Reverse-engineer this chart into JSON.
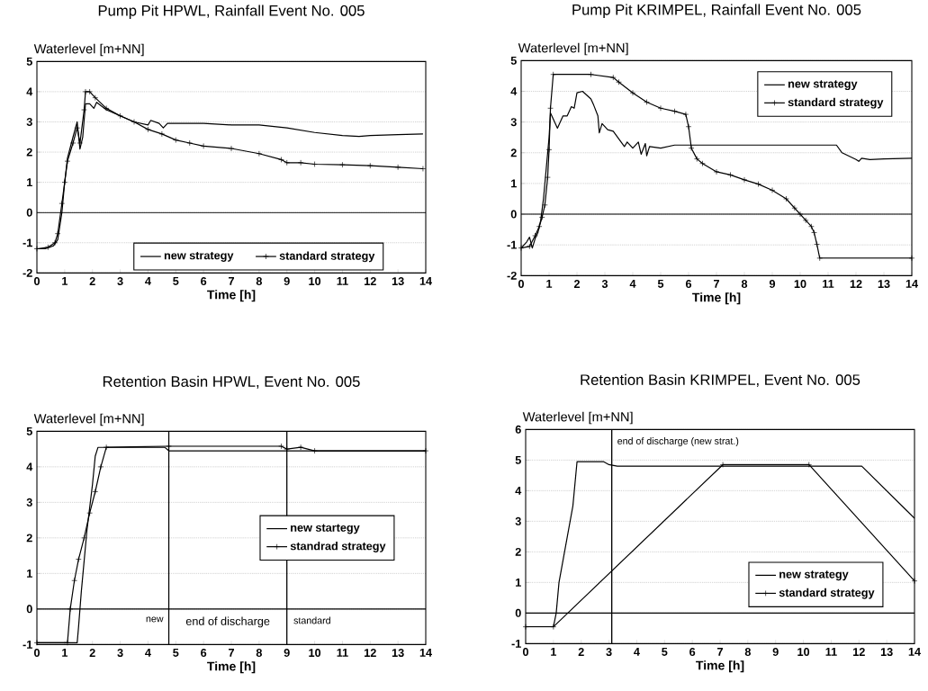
{
  "chart_data": [
    {
      "type": "line",
      "title": "Pump Pit HPWL, Rainfall Event No. 005",
      "ylabel": "Waterlevel [m+NN]",
      "xlabel": "Time [h]",
      "xlim": [
        0,
        14
      ],
      "ylim": [
        -2,
        5
      ],
      "xticks": [
        0,
        1,
        2,
        3,
        4,
        5,
        6,
        7,
        8,
        9,
        10,
        11,
        12,
        13,
        14
      ],
      "yticks": [
        -2,
        -1,
        0,
        1,
        2,
        3,
        4,
        5
      ],
      "grid": "y",
      "legend": "bottom",
      "ref_lines": [
        {
          "axis": "y",
          "value": 0,
          "color": "#000000"
        }
      ],
      "series": [
        {
          "name": "new strategy",
          "color": "#000000",
          "marker": "none",
          "x": [
            0,
            0.3,
            0.6,
            0.75,
            0.9,
            1.0,
            1.1,
            1.3,
            1.45,
            1.55,
            1.65,
            1.75,
            1.9,
            2.05,
            2.15,
            2.5,
            3,
            3.5,
            4,
            4.1,
            4.4,
            4.55,
            4.7,
            5,
            6,
            7,
            8,
            9,
            10,
            11,
            11.6,
            12,
            13,
            13.9
          ],
          "values": [
            -1.2,
            -1.2,
            -1.1,
            -0.9,
            0,
            1.0,
            1.8,
            2.5,
            3.0,
            2.1,
            2.5,
            3.6,
            3.6,
            3.45,
            3.65,
            3.4,
            3.2,
            3.0,
            2.9,
            3.05,
            2.95,
            2.8,
            2.95,
            2.95,
            2.95,
            2.9,
            2.9,
            2.8,
            2.65,
            2.55,
            2.52,
            2.55,
            2.58,
            2.6
          ]
        },
        {
          "name": "standard strategy",
          "color": "#000000",
          "marker": "cross",
          "x": [
            0,
            0.4,
            0.65,
            0.75,
            0.9,
            1.0,
            1.1,
            1.3,
            1.45,
            1.55,
            1.7,
            1.75,
            1.9,
            2.1,
            2.5,
            3,
            3.5,
            4,
            4.5,
            5,
            5.5,
            6,
            7,
            8,
            8.8,
            9,
            9.5,
            10,
            11,
            12,
            13,
            13.9
          ],
          "values": [
            -1.2,
            -1.15,
            -1.0,
            -0.7,
            0.3,
            1.0,
            1.7,
            2.3,
            2.8,
            2.3,
            3.4,
            4.0,
            4.0,
            3.8,
            3.45,
            3.2,
            3.0,
            2.75,
            2.6,
            2.4,
            2.3,
            2.2,
            2.12,
            1.95,
            1.75,
            1.65,
            1.65,
            1.6,
            1.58,
            1.55,
            1.5,
            1.45
          ]
        }
      ]
    },
    {
      "type": "line",
      "title": "Pump Pit KRIMPEL, Rainfall Event No. 005",
      "ylabel": "Waterlevel [m+NN]",
      "xlabel": "Time [h]",
      "xlim": [
        0,
        14
      ],
      "ylim": [
        -2,
        5
      ],
      "xticks": [
        0,
        1,
        2,
        3,
        4,
        5,
        6,
        7,
        8,
        9,
        10,
        11,
        12,
        13,
        14
      ],
      "yticks": [
        -2,
        -1,
        0,
        1,
        2,
        3,
        4,
        5
      ],
      "grid": "y",
      "legend": "top right",
      "ref_lines": [
        {
          "axis": "y",
          "value": 0,
          "color": "#000000"
        }
      ],
      "series": [
        {
          "name": "new strategy",
          "color": "#000000",
          "marker": "none",
          "x": [
            0,
            0.2,
            0.3,
            0.4,
            0.5,
            0.6,
            0.7,
            0.8,
            0.9,
            1.0,
            1.05,
            1.15,
            1.3,
            1.5,
            1.65,
            1.8,
            1.9,
            2.0,
            2.2,
            2.5,
            2.6,
            2.75,
            2.8,
            2.9,
            3.1,
            3.3,
            3.5,
            3.7,
            3.8,
            4,
            4.2,
            4.3,
            4.45,
            4.5,
            4.6,
            5,
            5.5,
            6,
            8,
            11.3,
            11.5,
            12,
            12.1,
            12.2,
            12.5,
            13,
            14
          ],
          "values": [
            -1.1,
            -0.9,
            -0.75,
            -1.1,
            -0.8,
            -0.6,
            -0.2,
            0.5,
            1.5,
            2.5,
            3.3,
            3.1,
            2.8,
            3.2,
            3.2,
            3.5,
            3.45,
            3.95,
            4.0,
            3.75,
            3.55,
            3.2,
            2.65,
            2.95,
            2.75,
            2.7,
            2.45,
            2.2,
            2.35,
            2.15,
            2.35,
            1.95,
            2.3,
            1.9,
            2.2,
            2.15,
            2.25,
            2.25,
            2.25,
            2.25,
            2.0,
            1.78,
            1.72,
            1.82,
            1.78,
            1.8,
            1.82
          ]
        },
        {
          "name": "standard strategy",
          "color": "#000000",
          "marker": "cross",
          "x": [
            0,
            0.3,
            0.5,
            0.65,
            0.75,
            0.85,
            0.95,
            1.0,
            1.05,
            1.15,
            2.5,
            3.3,
            3.5,
            4,
            4.5,
            5,
            5.5,
            5.9,
            6.0,
            6.1,
            6.3,
            6.5,
            7,
            7.5,
            8,
            8.5,
            9,
            9.5,
            9.8,
            10,
            10.2,
            10.4,
            10.5,
            10.6,
            10.7,
            14
          ],
          "values": [
            -1.1,
            -1.05,
            -0.7,
            -0.4,
            -0.1,
            0.3,
            1.2,
            2.1,
            3.45,
            4.55,
            4.55,
            4.45,
            4.3,
            3.95,
            3.65,
            3.45,
            3.35,
            3.25,
            2.85,
            2.15,
            1.8,
            1.65,
            1.38,
            1.28,
            1.12,
            0.98,
            0.78,
            0.5,
            0.2,
            0,
            -0.2,
            -0.4,
            -0.6,
            -0.98,
            -1.43,
            -1.43
          ]
        }
      ]
    },
    {
      "type": "line",
      "title": "Retention Basin HPWL, Event No. 005",
      "ylabel": "Waterlevel [m+NN]",
      "xlabel": "Time [h]",
      "xlim": [
        0,
        14
      ],
      "ylim": [
        -1,
        5
      ],
      "xticks": [
        0,
        1,
        2,
        3,
        4,
        5,
        6,
        7,
        8,
        9,
        10,
        11,
        12,
        13,
        14
      ],
      "yticks": [
        -1,
        0,
        1,
        2,
        3,
        4,
        5
      ],
      "grid": "y",
      "legend": "right",
      "ref_lines": [
        {
          "axis": "y",
          "value": 0,
          "color": "#000000"
        },
        {
          "axis": "x",
          "value": 4.75,
          "label": "new",
          "color": "#000000"
        },
        {
          "axis": "x",
          "value": 9,
          "label": "standard",
          "color": "#000000"
        }
      ],
      "annotations": [
        "end of discharge"
      ],
      "series": [
        {
          "name": "new startegy",
          "color": "#000000",
          "marker": "none",
          "x": [
            0,
            1.45,
            1.5,
            1.6,
            1.8,
            2.0,
            2.1,
            2.2,
            4.3,
            4.6,
            4.75,
            14
          ],
          "values": [
            -0.95,
            -0.95,
            -0.5,
            0.5,
            2.2,
            3.5,
            4.3,
            4.55,
            4.55,
            4.55,
            4.45,
            4.45
          ]
        },
        {
          "name": "standrad strategy",
          "color": "#000000",
          "marker": "cross",
          "x": [
            0,
            1.1,
            1.2,
            1.35,
            1.5,
            1.7,
            1.9,
            2.1,
            2.3,
            2.5,
            4.75,
            8.8,
            9,
            9.5,
            10,
            14
          ],
          "values": [
            -0.95,
            -0.95,
            0,
            0.8,
            1.4,
            2.0,
            2.7,
            3.3,
            4.0,
            4.55,
            4.58,
            4.58,
            4.5,
            4.55,
            4.45,
            4.45
          ]
        }
      ]
    },
    {
      "type": "line",
      "title": "Retention Basin KRIMPEL, Event No. 005",
      "ylabel": "Waterlevel [m+NN]",
      "xlabel": "Time [h]",
      "xlim": [
        0,
        14
      ],
      "ylim": [
        -1,
        6
      ],
      "xticks": [
        0,
        1,
        2,
        3,
        4,
        5,
        6,
        7,
        8,
        9,
        10,
        11,
        12,
        13,
        14
      ],
      "yticks": [
        -1,
        0,
        1,
        2,
        3,
        4,
        5,
        6
      ],
      "grid": "y",
      "legend": "bottom right",
      "ref_lines": [
        {
          "axis": "y",
          "value": 0,
          "color": "#000000"
        },
        {
          "axis": "x",
          "value": 3.1,
          "label": "end of discharge (new strat.)",
          "color": "#000000"
        }
      ],
      "series": [
        {
          "name": "new strategy",
          "color": "#000000",
          "marker": "none",
          "x": [
            0,
            1.0,
            1.1,
            1.2,
            1.5,
            1.7,
            1.85,
            2.5,
            2.8,
            3.0,
            3.3,
            12.1,
            14
          ],
          "values": [
            -0.45,
            -0.45,
            0,
            1.0,
            2.5,
            3.5,
            4.95,
            4.95,
            4.95,
            4.85,
            4.8,
            4.8,
            3.1
          ]
        },
        {
          "name": "standard strategy",
          "color": "#000000",
          "marker": "cross",
          "x": [
            0,
            1.0,
            7.1,
            10.2,
            14
          ],
          "values": [
            -0.45,
            -0.45,
            4.85,
            4.85,
            1.05
          ]
        }
      ]
    }
  ]
}
